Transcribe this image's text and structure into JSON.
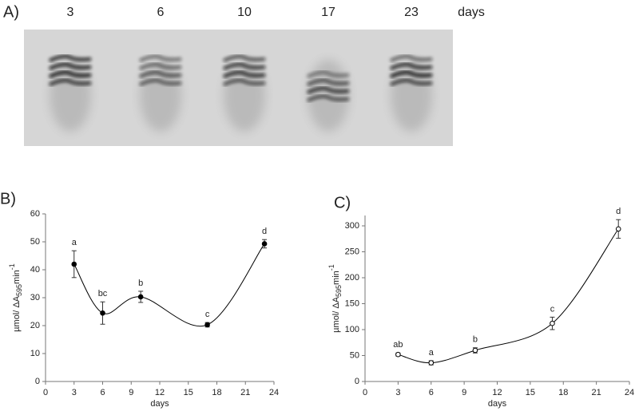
{
  "gel": {
    "label": "A)",
    "lanes": [
      "3",
      "6",
      "10",
      "17",
      "23"
    ],
    "unit": "days"
  },
  "chart_data": [
    {
      "type": "line",
      "panel": "B)",
      "xlabel": "days",
      "ylabel": {
        "text": "µmol/ ΔA",
        "sub": "595",
        "base": "min",
        "sup": "-1"
      },
      "x": [
        3,
        6,
        10,
        17,
        23
      ],
      "series": [
        {
          "color": "#000000",
          "marker": "filled",
          "values": [
            42,
            24.5,
            30.3,
            20.3,
            49.3
          ],
          "errors": [
            4.8,
            4,
            2,
            0.8,
            1.5
          ],
          "labels": [
            "a",
            "bc",
            "b",
            "c",
            "d"
          ]
        }
      ],
      "xlim": [
        0,
        24
      ],
      "xticks": [
        0,
        3,
        6,
        9,
        12,
        15,
        18,
        21,
        24
      ],
      "ylim": [
        0,
        60
      ],
      "yticks": [
        0,
        10,
        20,
        30,
        40,
        50,
        60
      ]
    },
    {
      "type": "line",
      "panel": "C)",
      "xlabel": "days",
      "ylabel": {
        "text": "µmol/ ΔA",
        "sub": "595",
        "base": "min",
        "sup": "-1"
      },
      "x": [
        3,
        6,
        10,
        17,
        23
      ],
      "series": [
        {
          "color": "#000000",
          "marker": "open",
          "values": [
            52,
            36,
            60,
            112,
            294
          ],
          "errors": [
            3,
            4,
            5,
            12,
            18
          ],
          "labels": [
            "ab",
            "a",
            "b",
            "c",
            "d"
          ]
        }
      ],
      "xlim": [
        0,
        24
      ],
      "xticks": [
        0,
        3,
        6,
        9,
        12,
        15,
        18,
        21,
        24
      ],
      "ylim": [
        0,
        320
      ],
      "yticks": [
        0,
        50,
        100,
        150,
        200,
        250,
        300
      ]
    }
  ]
}
